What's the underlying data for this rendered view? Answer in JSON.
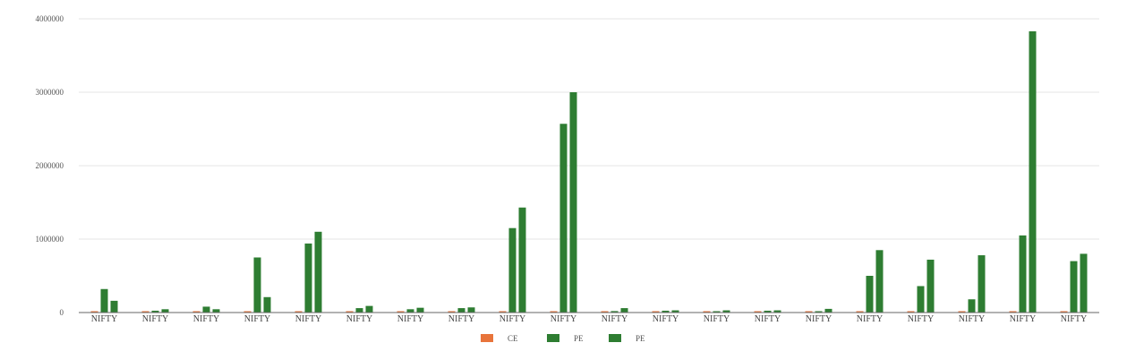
{
  "chart_data": {
    "type": "bar",
    "categories": [
      "NIFTY",
      "NIFTY",
      "NIFTY",
      "NIFTY",
      "NIFTY",
      "NIFTY",
      "NIFTY",
      "NIFTY",
      "NIFTY",
      "NIFTY",
      "NIFTY",
      "NIFTY",
      "NIFTY",
      "NIFTY",
      "NIFTY",
      "NIFTY",
      "NIFTY",
      "NIFTY",
      "NIFTY",
      "NIFTY"
    ],
    "series": [
      {
        "name": "CE",
        "color": "#e8743b",
        "values": [
          8000,
          8000,
          8000,
          8000,
          8000,
          8000,
          8000,
          8000,
          8000,
          8000,
          8000,
          8000,
          8000,
          8000,
          8000,
          8000,
          8000,
          8000,
          8000,
          8000
        ]
      },
      {
        "name": "PE",
        "color": "#2e7d32",
        "values": [
          320000,
          25000,
          80000,
          750000,
          940000,
          60000,
          45000,
          60000,
          1150000,
          2570000,
          20000,
          25000,
          15000,
          25000,
          15000,
          500000,
          360000,
          180000,
          1050000,
          700000
        ]
      },
      {
        "name": "PE",
        "color": "#2e7d32",
        "values": [
          160000,
          45000,
          45000,
          210000,
          1100000,
          90000,
          65000,
          70000,
          1430000,
          3000000,
          60000,
          30000,
          30000,
          30000,
          50000,
          850000,
          720000,
          780000,
          3830000,
          800000
        ]
      }
    ],
    "yticks": [
      "0",
      "1000000",
      "2000000",
      "3000000",
      "4000000"
    ],
    "ylim": [
      0,
      4000000
    ],
    "legend_position": "bottom",
    "grid": true
  }
}
